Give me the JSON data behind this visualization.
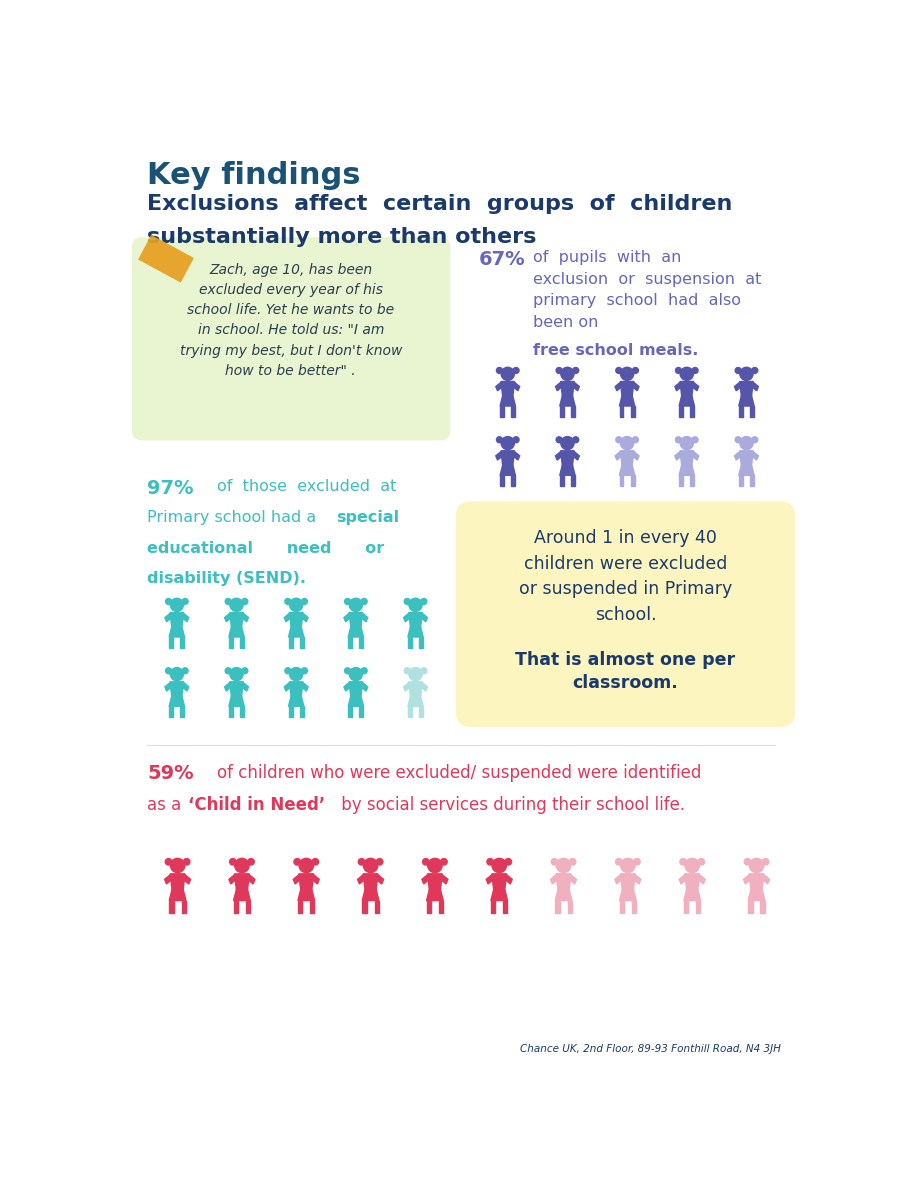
{
  "title": "Key findings",
  "subtitle_line1": "Exclusions  affect  certain  groups  of  children",
  "subtitle_line2": "substantially more than others",
  "bg_color": "#ffffff",
  "title_color": "#1a5276",
  "subtitle_color": "#1a3a6b",
  "quote_box_color": "#e8f5d0",
  "quote_text": "Zach, age 10, has been\nexcluded every year of his\nschool life. Yet he wants to be\nin school. He told us: \"I am\ntrying my best, but I don't know\nhow to be better\" .",
  "quote_text_color": "#2c3e50",
  "tape_color": "#e6a020",
  "stat1_pct": "97%",
  "stat1_color": "#3bbfbf",
  "stat2_pct": "67%",
  "stat2_color": "#6666bb",
  "stat3_text_color": "#1a3a6b",
  "stat3_box_color": "#fdf5c0",
  "stat4_pct": "59%",
  "stat4_color": "#e0385a",
  "footer": "Chance UK, 2nd Floor, 89-93 Fonthill Road, N4 3JH",
  "footer_color": "#1a3a6b",
  "teal_color": "#3bbfbf",
  "teal_light": "#b0e0e0",
  "purple_dark": "#5555aa",
  "purple_light": "#aaaadd",
  "pink_dark": "#e0385a",
  "pink_light": "#f0b0c0"
}
